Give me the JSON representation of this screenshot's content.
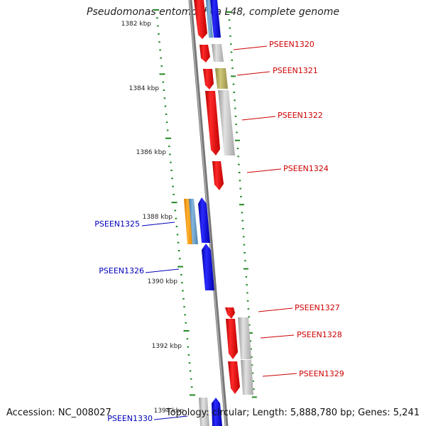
{
  "title": "Pseudomonas entomophila L48, complete genome",
  "footer": {
    "accession": "Accession: NC_008027",
    "info": "Topology: circular; Length: 5,888,780 bp; Genes: 5,241"
  },
  "colors": {
    "forward_label": "#cc0000",
    "reverse_label": "#0000bb",
    "tick": "#228822",
    "axis": "#777777"
  },
  "kbp_labels": [
    "1382 kbp",
    "1384 kbp",
    "1386 kbp",
    "1388 kbp",
    "1390 kbp",
    "1392 kbp",
    "1394 kbp"
  ],
  "gene_labels": [
    {
      "text": "PSEEN1320",
      "strand": "forward"
    },
    {
      "text": "PSEEN1321",
      "strand": "forward"
    },
    {
      "text": "PSEEN1322",
      "strand": "forward"
    },
    {
      "text": "PSEEN1324",
      "strand": "forward"
    },
    {
      "text": "PSEEN1325",
      "strand": "reverse"
    },
    {
      "text": "PSEEN1326",
      "strand": "reverse"
    },
    {
      "text": "PSEEN1327",
      "strand": "forward"
    },
    {
      "text": "PSEEN1328",
      "strand": "forward"
    },
    {
      "text": "PSEEN1329",
      "strand": "forward"
    },
    {
      "text": "PSEEN1330",
      "strand": "reverse"
    }
  ]
}
